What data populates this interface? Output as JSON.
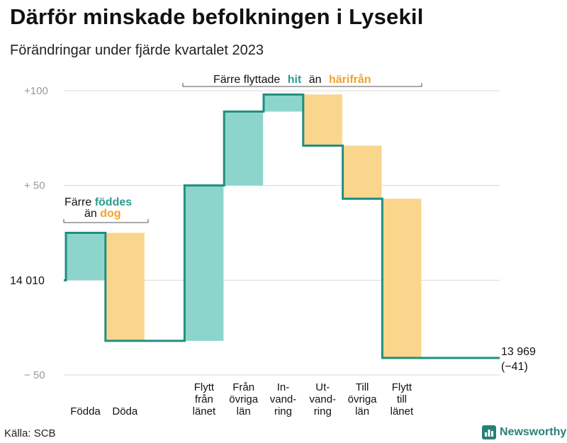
{
  "title": "Därför minskade befolkningen i Lysekil",
  "subtitle": "Förändringar under fjärde kvartalet 2023",
  "source": "Källa: SCB",
  "brand": "Newsworthy",
  "colors": {
    "increase": "#8dd5cc",
    "decrease": "#fad58c",
    "line": "#1f8f80",
    "grid": "#d9d9d9",
    "accent_teal": "#2a9d8f",
    "accent_orange": "#f2a32a"
  },
  "annotations": {
    "born": {
      "prefix": "Färre",
      "highlight1": "föddes",
      "middle": "än",
      "highlight2": "dog"
    },
    "moves": {
      "prefix": "Färre flyttade",
      "highlight1": "hit",
      "middle": "än",
      "highlight2": "härifrån"
    }
  },
  "start_label": "14  010",
  "end_label": {
    "value": "13 969",
    "change": "(−41)"
  },
  "chart_data": {
    "type": "waterfall",
    "title": "Därför minskade befolkningen i Lysekil",
    "subtitle": "Förändringar under fjärde kvartalet 2023",
    "baseline": 14010,
    "ylim": [
      -50,
      100
    ],
    "y_ticks": [
      {
        "value": 100,
        "label": "+100"
      },
      {
        "value": 50,
        "label": "+  50"
      },
      {
        "value": 0,
        "label": ""
      },
      {
        "value": -50,
        "label": "−  50"
      }
    ],
    "grid": true,
    "categories": [
      {
        "label": [
          "Födda"
        ],
        "delta": 25,
        "kind": "increase"
      },
      {
        "label": [
          "Döda"
        ],
        "delta": -57,
        "kind": "decrease"
      },
      {
        "label": [],
        "delta": 0,
        "kind": "gap"
      },
      {
        "label": [
          "Flytt",
          "från",
          "länet"
        ],
        "delta": 82,
        "kind": "increase"
      },
      {
        "label": [
          "Från",
          "övriga",
          "län"
        ],
        "delta": 39,
        "kind": "increase"
      },
      {
        "label": [
          "In-",
          "vand-",
          "ring"
        ],
        "delta": 9,
        "kind": "increase"
      },
      {
        "label": [
          "Ut-",
          "vand-",
          "ring"
        ],
        "delta": -27,
        "kind": "decrease"
      },
      {
        "label": [
          "Till",
          "övriga",
          "län"
        ],
        "delta": -28,
        "kind": "decrease"
      },
      {
        "label": [
          "Flytt",
          "till",
          "länet"
        ],
        "delta": -84,
        "kind": "decrease"
      }
    ],
    "end_value": 13969,
    "net_change": -41
  }
}
